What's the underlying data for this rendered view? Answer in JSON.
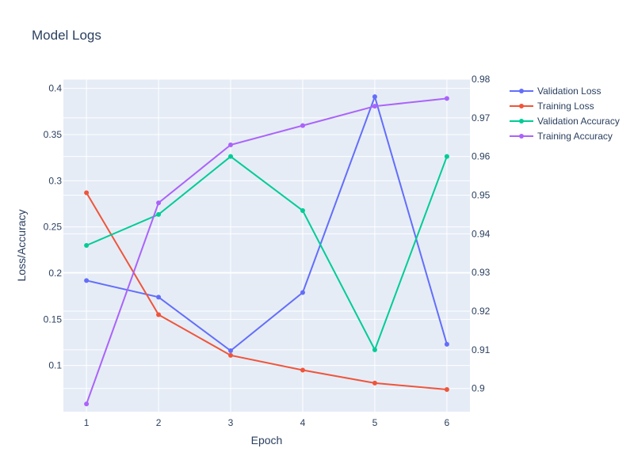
{
  "chart_data": {
    "type": "line",
    "title": "Model Logs",
    "xlabel": "Epoch",
    "ylabel": "Loss/Accuracy",
    "x": [
      1,
      2,
      3,
      4,
      5,
      6
    ],
    "x_ticks": [
      "1",
      "2",
      "3",
      "4",
      "5",
      "6"
    ],
    "ylim": [
      0.05,
      0.41
    ],
    "y_ticks": [
      "0.1",
      "0.15",
      "0.2",
      "0.25",
      "0.3",
      "0.35",
      "0.4"
    ],
    "y2lim": [
      0.894,
      0.98
    ],
    "y2_ticks": [
      "0.9",
      "0.91",
      "0.92",
      "0.93",
      "0.94",
      "0.95",
      "0.96",
      "0.97",
      "0.98"
    ],
    "grid": true,
    "legend_position": "top-right, outside plot",
    "series": [
      {
        "name": "Validation Loss",
        "axis": "y",
        "color": "#636efa",
        "values": [
          0.192,
          0.174,
          0.116,
          0.179,
          0.391,
          0.123
        ]
      },
      {
        "name": "Training Loss",
        "axis": "y",
        "color": "#ef553b",
        "values": [
          0.287,
          0.155,
          0.111,
          0.095,
          0.081,
          0.074
        ]
      },
      {
        "name": "Validation Accuracy",
        "axis": "y2",
        "color": "#00cc96",
        "values": [
          0.937,
          0.945,
          0.96,
          0.946,
          0.91,
          0.96
        ]
      },
      {
        "name": "Training Accuracy",
        "axis": "y2",
        "color": "#ab63fa",
        "values": [
          0.896,
          0.948,
          0.963,
          0.968,
          0.973,
          0.975
        ]
      }
    ]
  }
}
